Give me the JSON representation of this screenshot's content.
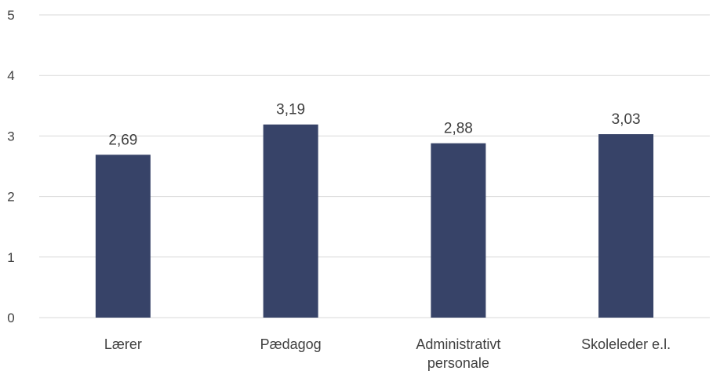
{
  "chart_data": {
    "type": "bar",
    "categories": [
      [
        "Lærer"
      ],
      [
        "Pædagog"
      ],
      [
        "Administrativt",
        "personale"
      ],
      [
        "Skoleleder e.l."
      ]
    ],
    "values": [
      2.69,
      3.19,
      2.88,
      3.03
    ],
    "data_labels": [
      "2,69",
      "3,19",
      "2,88",
      "3,03"
    ],
    "y_ticks": [
      "0",
      "1",
      "2",
      "3",
      "4",
      "5"
    ],
    "ylim": [
      0,
      5
    ],
    "grid": true,
    "bar_color": "#374368",
    "grid_color": "#d9d9d9",
    "text_color": "#404040"
  }
}
